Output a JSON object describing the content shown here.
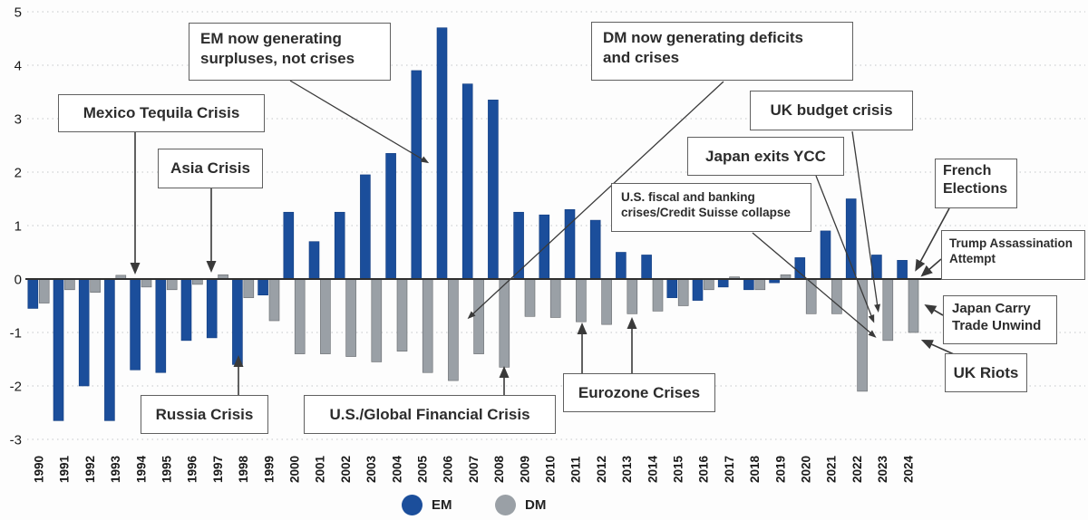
{
  "colors": {
    "em_bar": "#1b4e9b",
    "dm_bar": "#9aa0a6",
    "zero_axis": "#2f2f2f",
    "gridline": "#c4c6c9",
    "arrow": "#3a3a3a",
    "annotation_border": "#606060",
    "annotation_text": "#2c2c2c",
    "axis_text": "#1a1a1a",
    "background": "#fdfdfd"
  },
  "y_axis": {
    "ticks": [
      5,
      4,
      3,
      2,
      1,
      0,
      -1,
      -2,
      -3
    ]
  },
  "legend": {
    "items": [
      {
        "label": "EM",
        "color": "#1b4e9b"
      },
      {
        "label": "DM",
        "color": "#9aa0a6"
      }
    ]
  },
  "chart_data": {
    "type": "bar",
    "title": "",
    "xlabel": "",
    "ylabel": "",
    "ylim": [
      -3,
      5
    ],
    "grid": "horizontal dotted lines at integer values",
    "legend_position": "bottom-center",
    "x_tick_rotation": 90,
    "categories": [
      "1990",
      "1991",
      "1992",
      "1993",
      "1994",
      "1995",
      "1996",
      "1997",
      "1998",
      "1999",
      "2000",
      "2001",
      "2002",
      "2003",
      "2004",
      "2005",
      "2006",
      "2007",
      "2008",
      "2009",
      "2010",
      "2011",
      "2012",
      "2013",
      "2014",
      "2015",
      "2016",
      "2017",
      "2018",
      "2019",
      "2020",
      "2021",
      "2022",
      "2023",
      "2024"
    ],
    "series": [
      {
        "name": "EM",
        "color": "#1b4e9b",
        "values": [
          -0.55,
          -2.65,
          -2.0,
          -2.65,
          -1.7,
          -1.75,
          -1.15,
          -1.1,
          -1.6,
          -0.3,
          1.25,
          0.7,
          1.25,
          1.95,
          2.35,
          3.9,
          4.7,
          3.65,
          3.35,
          1.25,
          1.2,
          1.3,
          1.1,
          0.5,
          0.45,
          -0.35,
          -0.4,
          -0.15,
          -0.2,
          -0.07,
          0.4,
          0.9,
          1.5,
          0.45,
          0.35
        ]
      },
      {
        "name": "DM",
        "color": "#9aa0a6",
        "values": [
          -0.45,
          -0.2,
          -0.25,
          0.07,
          -0.15,
          -0.2,
          -0.1,
          0.08,
          -0.35,
          -0.78,
          -1.4,
          -1.4,
          -1.45,
          -1.55,
          -1.35,
          -1.75,
          -1.9,
          -1.4,
          -1.65,
          -0.7,
          -0.72,
          -0.8,
          -0.85,
          -0.65,
          -0.6,
          -0.5,
          -0.2,
          0.04,
          -0.2,
          0.08,
          -0.65,
          -0.65,
          -2.1,
          -1.15,
          -1.0
        ]
      }
    ],
    "annotations": [
      {
        "id": "mexico-tequila",
        "label": "Mexico Tequila Crisis",
        "target_years": [
          "1994"
        ]
      },
      {
        "id": "asia-crisis",
        "label": "Asia Crisis",
        "target_years": [
          "1997"
        ]
      },
      {
        "id": "russia-crisis",
        "label": "Russia Crisis",
        "target_years": [
          "1998"
        ]
      },
      {
        "id": "em-surpluses",
        "label": "EM now generating\nsurpluses, not crises",
        "target_years": [
          "2005",
          "2006"
        ]
      },
      {
        "id": "global-financial-crisis",
        "label": "U.S./Global Financial Crisis",
        "target_years": [
          "2008"
        ]
      },
      {
        "id": "dm-deficits",
        "label": "DM now generating deficits\nand crises",
        "target_years": [
          "2007"
        ]
      },
      {
        "id": "eurozone-crises",
        "label": "Eurozone Crises",
        "target_years": [
          "2011",
          "2013"
        ]
      },
      {
        "id": "us-fiscal-credit-suisse",
        "label": "U.S. fiscal and banking\ncrises/Credit Suisse collapse",
        "target_years": [
          "2023"
        ]
      },
      {
        "id": "japan-exits-ycc",
        "label": "Japan exits YCC",
        "target_years": [
          "2023"
        ]
      },
      {
        "id": "uk-budget-crisis",
        "label": "UK budget crisis",
        "target_years": [
          "2022",
          "2023"
        ]
      },
      {
        "id": "french-elections",
        "label": "French\nElections",
        "target_years": [
          "2024"
        ]
      },
      {
        "id": "trump-assassination",
        "label": "Trump Assassination\nAttempt",
        "target_years": [
          "2024"
        ]
      },
      {
        "id": "japan-carry-unwind",
        "label": "Japan Carry\nTrade Unwind",
        "target_years": [
          "2024"
        ]
      },
      {
        "id": "uk-riots",
        "label": "UK Riots",
        "target_years": [
          "2024"
        ]
      }
    ]
  }
}
